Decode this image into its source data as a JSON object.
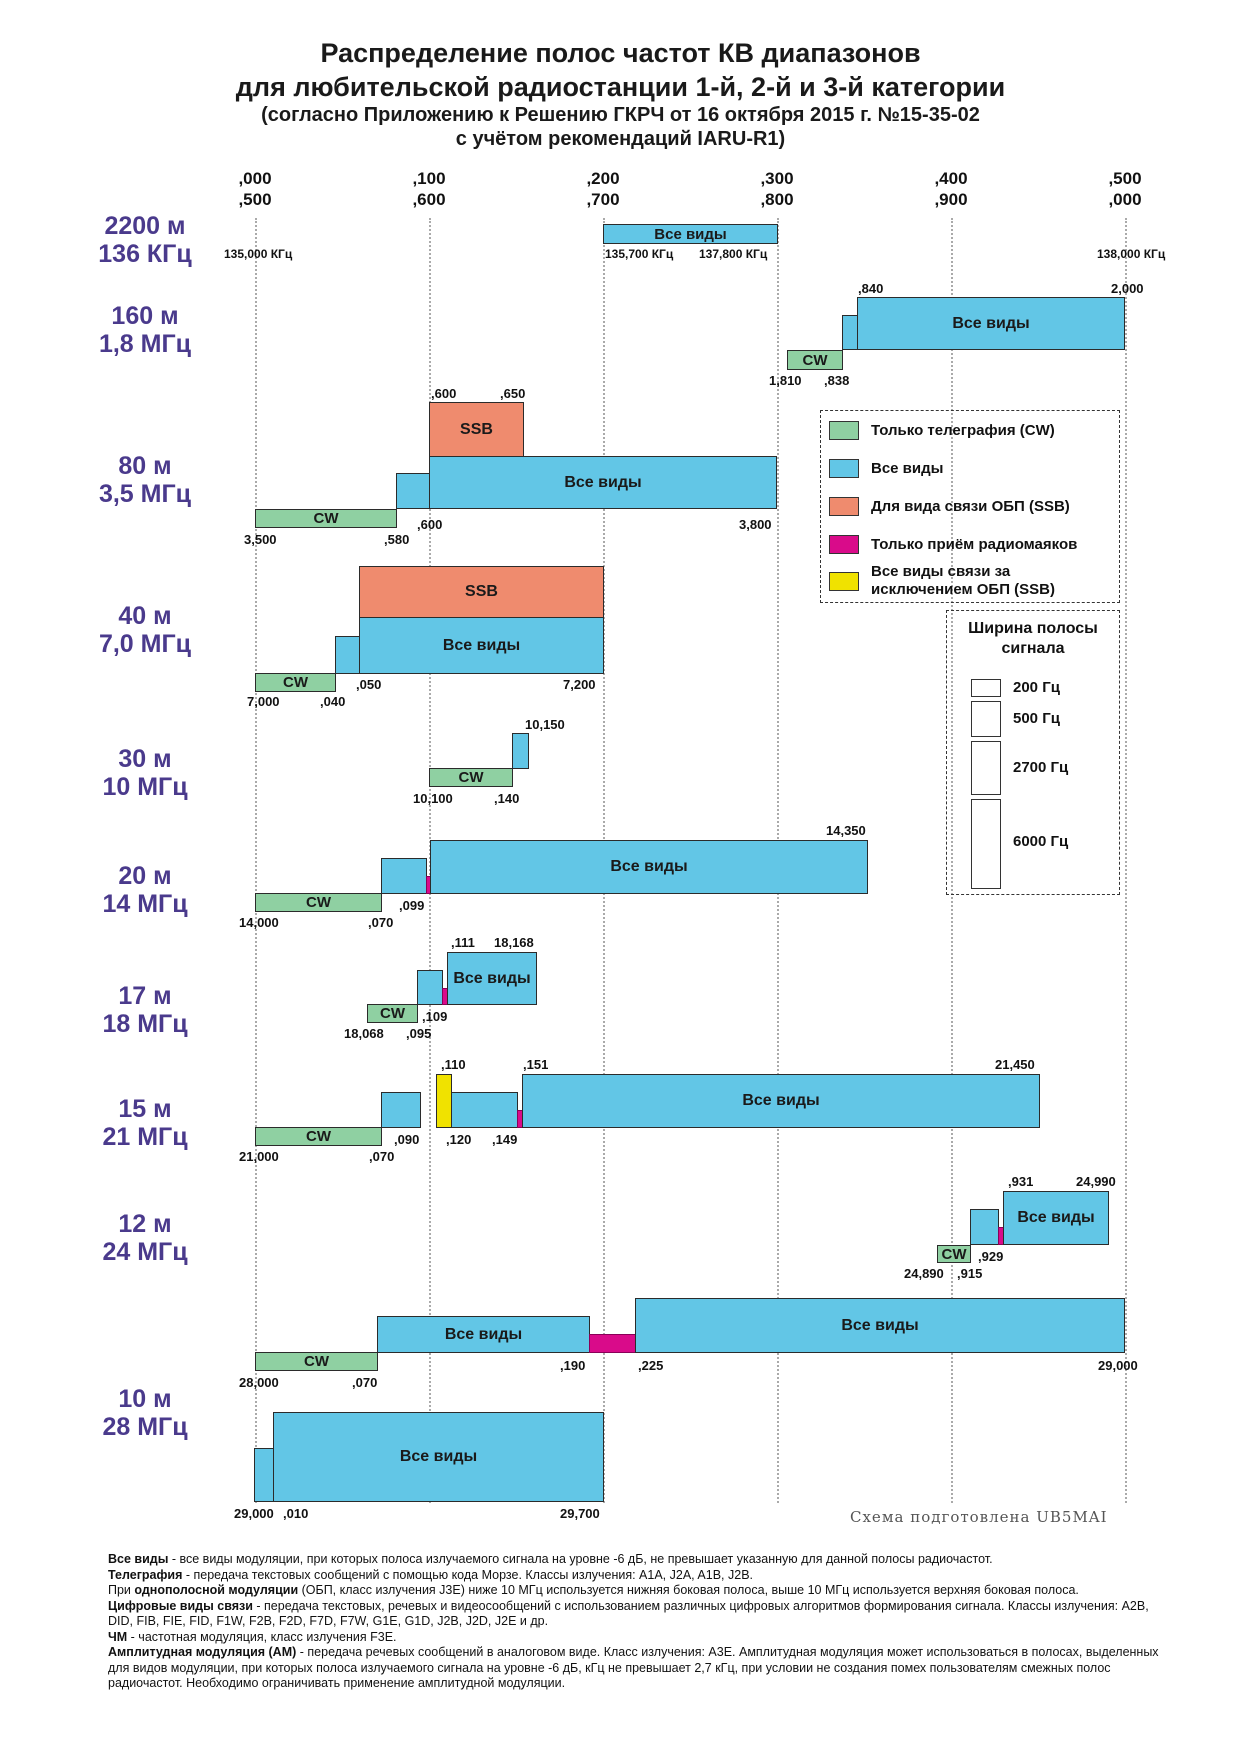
{
  "title": {
    "line1": "Распределение полос частот КВ диапазонов",
    "line2": "для любительской радиостанции 1-й, 2-й и 3-й категории",
    "line3": "(согласно Приложению к Решению ГКРЧ от 16 октября 2015 г. №15-35-02",
    "line4": "с учётом рекомендаций IARU-R1)"
  },
  "axis": {
    "ticks": [
      {
        "a": ",000",
        "b": ",500"
      },
      {
        "a": ",100",
        "b": ",600"
      },
      {
        "a": ",200",
        "b": ",700"
      },
      {
        "a": ",300",
        "b": ",800"
      },
      {
        "a": ",400",
        "b": ",900"
      },
      {
        "a": ",500",
        "b": ",000"
      }
    ]
  },
  "bands": [
    {
      "wl": "2200 м",
      "freq": "136 КГц"
    },
    {
      "wl": "160 м",
      "freq": "1,8 МГц"
    },
    {
      "wl": "80 м",
      "freq": "3,5 МГц"
    },
    {
      "wl": "40 м",
      "freq": "7,0 МГц"
    },
    {
      "wl": "30 м",
      "freq": "10 МГц"
    },
    {
      "wl": "20 м",
      "freq": "14 МГц"
    },
    {
      "wl": "17 м",
      "freq": "18 МГц"
    },
    {
      "wl": "15 м",
      "freq": "21 МГц"
    },
    {
      "wl": "12 м",
      "freq": "24 МГц"
    },
    {
      "wl": "10 м",
      "freq": "28 МГц"
    }
  ],
  "segments": {
    "all_label": "Все виды",
    "cw_label": "CW",
    "ssb_label": "SSB"
  },
  "labels": {
    "b2200": [
      "135,000 КГц",
      "135,700 КГц",
      "137,800 КГц",
      "138,000 КГц"
    ],
    "b160": [
      ",840",
      "2,000",
      "1,810",
      ",838"
    ],
    "b80": [
      ",600",
      ",650",
      "3,500",
      ",580",
      ",600",
      "3,800"
    ],
    "b40": [
      "7,000",
      ",040",
      ",050",
      "7,200"
    ],
    "b30": [
      "10,150",
      "10,100",
      ",140"
    ],
    "b20": [
      "14,350",
      "14,000",
      ",070",
      ",099"
    ],
    "b17": [
      ",111",
      "18,168",
      "18,068",
      ",095",
      ",109"
    ],
    "b15": [
      ",110",
      ",151",
      "21,450",
      "21,000",
      ",070",
      ",090",
      ",120",
      ",149"
    ],
    "b12": [
      ",931",
      "24,990",
      "24,890",
      ",915",
      ",929"
    ],
    "b10": [
      "28,000",
      ",070",
      ",190",
      ",225",
      "29,000",
      "29,000",
      ",010",
      "29,700"
    ]
  },
  "legend": [
    {
      "label": "Только телеграфия (CW)",
      "color": "#8fd0a2"
    },
    {
      "label": "Все виды",
      "color": "#62c6e6"
    },
    {
      "label": "Для вида связи ОБП (SSB)",
      "color": "#ef8b6e"
    },
    {
      "label": "Только приём радиомаяков",
      "color": "#d90b8a"
    },
    {
      "label": "Все виды связи за исключением ОБП (SSB)",
      "color": "#f0e200"
    }
  ],
  "bandwidth": {
    "title": "Ширина полосы сигнала",
    "items": [
      "200 Гц",
      "500 Гц",
      "2700 Гц",
      "6000 Гц"
    ]
  },
  "credit": "Схема подготовлена UB5MAI",
  "notes": [
    {
      "bold": "Все виды",
      "text": " - все виды модуляции, при которых полоса излучаемого сигнала на уровне -6 дБ, не превышает указанную для данной полосы радиочастот."
    },
    {
      "bold": "Телеграфия",
      "text": " - передача текстовых сообщений с помощью кода Морзе. Классы излучения: A1A, J2A, A1B, J2B."
    },
    {
      "pre": "При ",
      "bold": "однополосной модуляции",
      "text": " (ОБП, класс излучения J3E) ниже 10 МГц используется нижняя боковая полоса, выше 10 МГц используется верхняя боковая полоса."
    },
    {
      "bold": "Цифровые виды связи",
      "text": " - передача текстовых, речевых и видеосообщений с использованием различных цифровых алгоритмов формирования сигнала. Классы излучения: A2B, DID, FIB, FIE, FID, F1W, F2B, F2D, F7D, F7W, G1E, G1D, J2B, J2D, J2E и др."
    },
    {
      "bold": "ЧМ",
      "text": " - частотная модуляция, класс излучения F3E."
    },
    {
      "bold": "Амплитудная модуляция (АМ)",
      "text": " - передача речевых сообщений в аналоговом виде. Класс излучения: A3E. Амплитудная модуляция может использоваться в полосах, выделенных для видов модуляции, при которых полоса излучаемого сигнала на уровне -6 дБ, кГц не превышает 2,7 кГц, при условии не создания помех пользователям смежных полос радиочастот. Необходимо ограничивать применение амплитудной модуляции."
    }
  ]
}
